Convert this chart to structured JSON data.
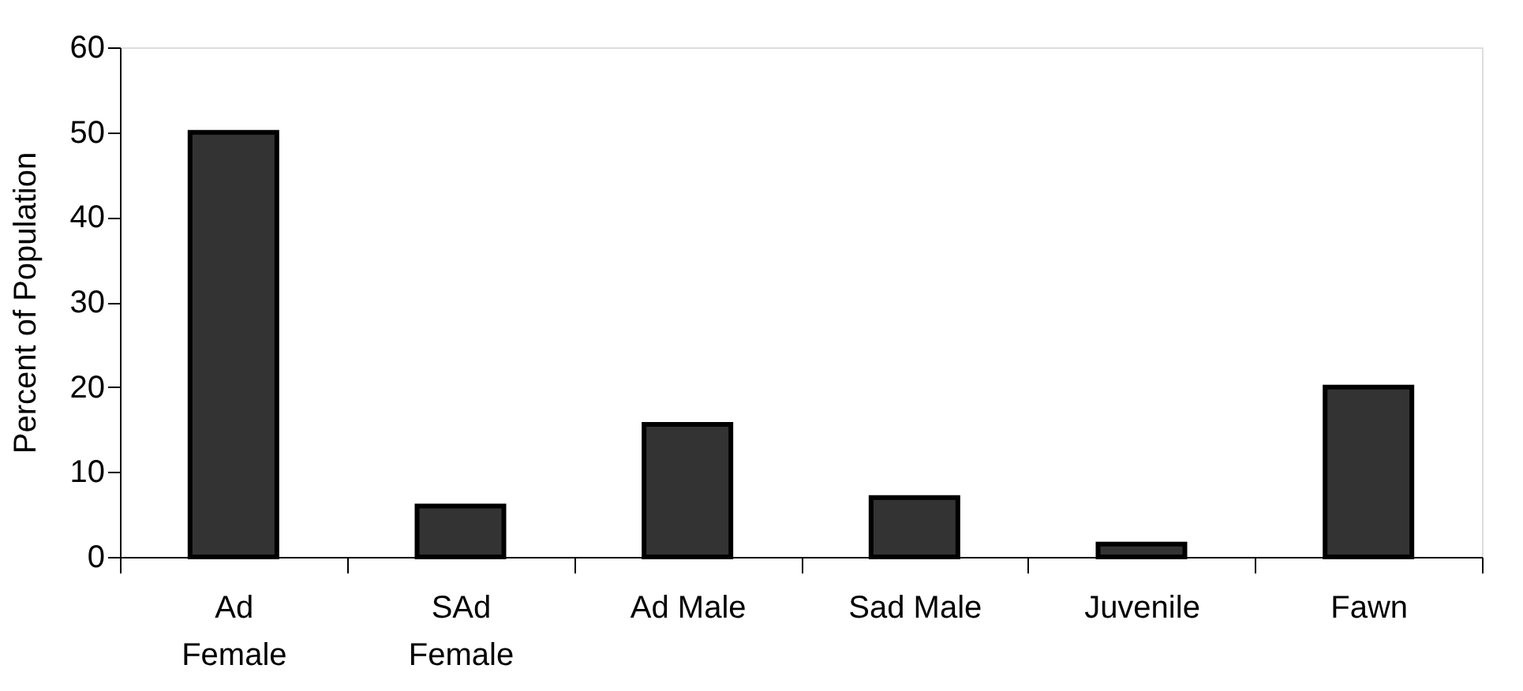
{
  "chart_data": {
    "type": "bar",
    "ylabel": "Percent of Population",
    "categories": [
      "Ad Female",
      "SAd Female",
      "Ad Male",
      "Sad Male",
      "Juvenile",
      "Fawn"
    ],
    "values": [
      50,
      6,
      15.6,
      7,
      1.5,
      20
    ],
    "color": "#333333",
    "ylim": [
      0,
      60
    ],
    "yticks": [
      0,
      10,
      20,
      30,
      40,
      50,
      60
    ],
    "grid": false
  }
}
